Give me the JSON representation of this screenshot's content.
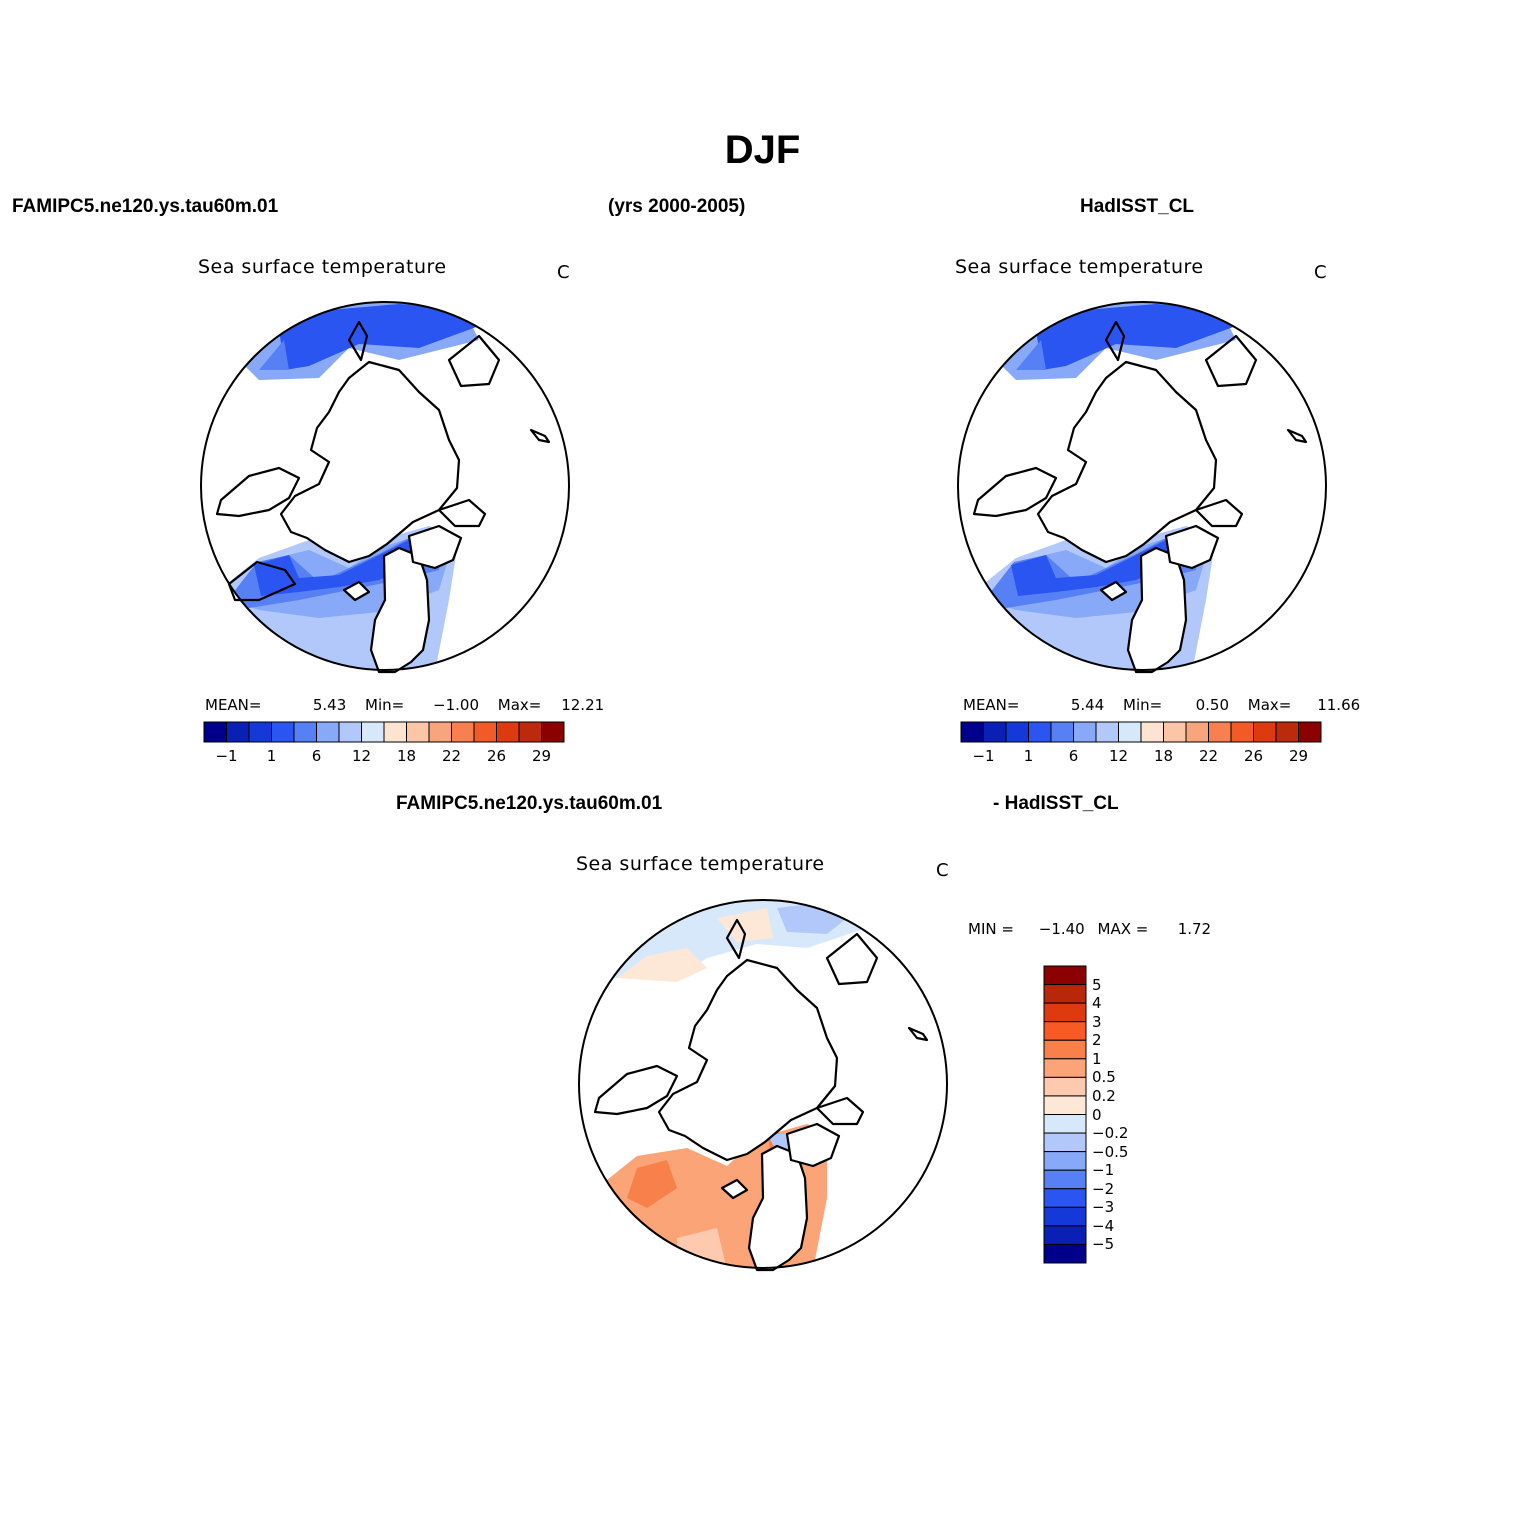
{
  "title": "DJF",
  "header": {
    "model": "FAMIPC5.ne120.ys.tau60m.01",
    "years": "(yrs 2000-2005)",
    "obs": "HadISST_CL"
  },
  "diff_header": {
    "model": "FAMIPC5.ne120.ys.tau60m.01",
    "obs": "- HadISST_CL"
  },
  "panels": [
    {
      "id": "model",
      "variable": "Sea surface temperature",
      "units": "C",
      "stats": {
        "mean_label": "MEAN=",
        "mean": "5.43",
        "min_label": "Min=",
        "min": "−1.00",
        "max_label": "Max=",
        "max": "12.21"
      }
    },
    {
      "id": "obs",
      "variable": "Sea surface temperature",
      "units": "C",
      "stats": {
        "mean_label": "MEAN=",
        "mean": "5.44",
        "min_label": "Min=",
        "min": "0.50",
        "max_label": "Max=",
        "max": "11.66"
      }
    },
    {
      "id": "diff",
      "variable": "Sea surface temperature",
      "units": "C",
      "stats": {
        "min_label": "MIN =",
        "min": "−1.40",
        "max_label": "MAX =",
        "max": "1.72"
      }
    }
  ],
  "colorbar_main": {
    "colors": [
      "#00008b",
      "#0a20b4",
      "#1538d8",
      "#2a55f0",
      "#5780f5",
      "#88a8f8",
      "#b2c8fa",
      "#d8e8fb",
      "#fde4d0",
      "#fbc6a8",
      "#f8a47c",
      "#f78050",
      "#f25a28",
      "#de3a10",
      "#bc2a0c",
      "#8b0000"
    ],
    "labels": [
      "−1",
      "1",
      "6",
      "12",
      "18",
      "22",
      "26",
      "29"
    ]
  },
  "colorbar_diff": {
    "colors": [
      "#8b0000",
      "#b8270a",
      "#de3a10",
      "#f85a26",
      "#f8804a",
      "#fba478",
      "#fdcab0",
      "#fde8d8",
      "#d8e8fb",
      "#b2c8fa",
      "#88a8f8",
      "#5780f5",
      "#2a55f0",
      "#1538d8",
      "#0a20b4",
      "#00008b"
    ],
    "labels": [
      "5",
      "4",
      "3",
      "2",
      "1",
      "0.5",
      "0.2",
      "0",
      "−0.2",
      "−0.5",
      "−1",
      "−2",
      "−3",
      "−4",
      "−5"
    ]
  },
  "field_colors": {
    "mid_blue": "#2a55f0",
    "light_blue": "#5780f5",
    "pale_blue": "#88a8f8",
    "very_pale_blue": "#b2c8fa",
    "diff_salmon": "#fba478",
    "diff_orange": "#f8804a",
    "diff_peach": "#fdcab0",
    "diff_cream": "#fde8d8",
    "diff_pale_blue": "#d8e8fb",
    "diff_blue": "#b2c8fa"
  }
}
